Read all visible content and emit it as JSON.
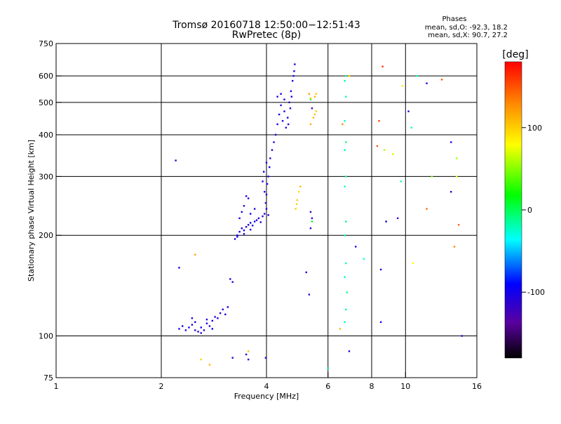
{
  "chart_data": {
    "type": "scatter",
    "title": "Tromsø 20160718 12:50:00−12:51:43",
    "subtitle": "RwPretec (8p)",
    "phases_panel": {
      "heading": "Phases",
      "line_o": "mean, sd,O: -92.3, 18.2",
      "line_x": "mean, sd,X:  90.7, 27.2"
    },
    "xlabel": "Frequency [MHz]",
    "ylabel": "Stationary phase Virtual Height [km]",
    "x_scale": "log2",
    "y_scale": "log",
    "xlim": [
      1,
      16
    ],
    "ylim": [
      75,
      750
    ],
    "x_ticks": [
      {
        "v": 1,
        "label": "1"
      },
      {
        "v": 2,
        "label": "2"
      },
      {
        "v": 4,
        "label": "4"
      },
      {
        "v": 6,
        "label": "6"
      },
      {
        "v": 8,
        "label": "8"
      },
      {
        "v": 10,
        "label": "10"
      },
      {
        "v": 16,
        "label": "16"
      }
    ],
    "y_ticks": [
      {
        "v": 75,
        "label": "75"
      },
      {
        "v": 100,
        "label": "100"
      },
      {
        "v": 200,
        "label": "200"
      },
      {
        "v": 300,
        "label": "300"
      },
      {
        "v": 400,
        "label": "400"
      },
      {
        "v": 500,
        "label": "500"
      },
      {
        "v": 600,
        "label": "600"
      },
      {
        "v": 750,
        "label": "750"
      }
    ],
    "grid": true,
    "colorbar": {
      "label": "[deg]",
      "min": -180,
      "max": 180,
      "ticks": [
        {
          "v": 100,
          "label": "100"
        },
        {
          "v": 0,
          "label": "0"
        },
        {
          "v": -100,
          "label": "-100"
        }
      ]
    },
    "points": [
      [
        2.25,
        105,
        -105
      ],
      [
        2.3,
        107,
        -100
      ],
      [
        2.35,
        104,
        -110
      ],
      [
        2.4,
        106,
        -95
      ],
      [
        2.45,
        108,
        -105
      ],
      [
        2.5,
        104,
        -110
      ],
      [
        2.5,
        110,
        -100
      ],
      [
        2.55,
        103,
        -105
      ],
      [
        2.6,
        106,
        -95
      ],
      [
        2.65,
        104,
        -110
      ],
      [
        2.7,
        109,
        -100
      ],
      [
        2.7,
        112,
        -105
      ],
      [
        2.75,
        107,
        -110
      ],
      [
        2.8,
        111,
        -95
      ],
      [
        2.85,
        114,
        -105
      ],
      [
        2.9,
        113,
        -100
      ],
      [
        2.95,
        117,
        -110
      ],
      [
        3.0,
        120,
        -100
      ],
      [
        3.05,
        116,
        -105
      ],
      [
        3.1,
        122,
        -95
      ],
      [
        3.15,
        148,
        -105
      ],
      [
        3.2,
        145,
        -110
      ],
      [
        2.6,
        102,
        -115
      ],
      [
        2.45,
        113,
        -100
      ],
      [
        2.8,
        105,
        -90
      ],
      [
        3.25,
        195,
        -110
      ],
      [
        3.3,
        200,
        -105
      ],
      [
        3.35,
        205,
        -100
      ],
      [
        3.4,
        210,
        -110
      ],
      [
        3.45,
        207,
        -95
      ],
      [
        3.5,
        212,
        -105
      ],
      [
        3.55,
        215,
        -110
      ],
      [
        3.6,
        218,
        -100
      ],
      [
        3.65,
        214,
        -105
      ],
      [
        3.7,
        220,
        -95
      ],
      [
        3.75,
        222,
        -110
      ],
      [
        3.8,
        225,
        -100
      ],
      [
        3.85,
        219,
        -105
      ],
      [
        3.9,
        228,
        -110
      ],
      [
        3.95,
        232,
        -100
      ],
      [
        3.35,
        225,
        -95
      ],
      [
        3.4,
        235,
        -110
      ],
      [
        3.45,
        245,
        -105
      ],
      [
        3.5,
        262,
        -100
      ],
      [
        3.55,
        258,
        -110
      ],
      [
        3.6,
        232,
        -95
      ],
      [
        3.7,
        240,
        -105
      ],
      [
        3.3,
        198,
        -100
      ],
      [
        3.45,
        202,
        -110
      ],
      [
        3.6,
        208,
        -100
      ],
      [
        3.98,
        250,
        -105
      ],
      [
        4.0,
        265,
        -110
      ],
      [
        4.02,
        285,
        -100
      ],
      [
        4.05,
        300,
        -105
      ],
      [
        4.08,
        320,
        -95
      ],
      [
        4.1,
        340,
        -110
      ],
      [
        4.15,
        360,
        -100
      ],
      [
        4.2,
        380,
        -105
      ],
      [
        4.25,
        400,
        -110
      ],
      [
        4.3,
        430,
        -100
      ],
      [
        4.35,
        460,
        -95
      ],
      [
        4.4,
        490,
        -105
      ],
      [
        4.45,
        440,
        -110
      ],
      [
        4.5,
        470,
        -100
      ],
      [
        4.55,
        420,
        -105
      ],
      [
        4.6,
        450,
        -95
      ],
      [
        4.65,
        500,
        -110
      ],
      [
        4.7,
        540,
        -100
      ],
      [
        4.75,
        580,
        -105
      ],
      [
        4.8,
        620,
        -110
      ],
      [
        4.82,
        650,
        -100
      ],
      [
        4.78,
        600,
        -105
      ],
      [
        4.72,
        520,
        -95
      ],
      [
        4.68,
        480,
        -110
      ],
      [
        4.62,
        430,
        -100
      ],
      [
        4.4,
        530,
        -105
      ],
      [
        4.3,
        520,
        -110
      ],
      [
        4.5,
        510,
        -100
      ],
      [
        4.05,
        230,
        -105
      ],
      [
        4.0,
        240,
        -110
      ],
      [
        3.95,
        270,
        -100
      ],
      [
        3.9,
        290,
        -105
      ],
      [
        3.93,
        310,
        -95
      ],
      [
        4.0,
        330,
        -110
      ],
      [
        2.2,
        335,
        -120
      ],
      [
        2.25,
        160,
        -105
      ],
      [
        3.2,
        86,
        -110
      ],
      [
        3.5,
        88,
        -105
      ],
      [
        3.55,
        85,
        -115
      ],
      [
        3.98,
        86,
        -100
      ],
      [
        5.3,
        133,
        -110
      ],
      [
        5.2,
        155,
        -105
      ],
      [
        4.85,
        240,
        100
      ],
      [
        4.9,
        255,
        105
      ],
      [
        4.95,
        270,
        95
      ],
      [
        5.0,
        280,
        110
      ],
      [
        4.88,
        248,
        100
      ],
      [
        5.45,
        450,
        110
      ],
      [
        5.5,
        460,
        105
      ],
      [
        5.55,
        470,
        100
      ],
      [
        5.5,
        520,
        110
      ],
      [
        5.55,
        530,
        105
      ],
      [
        5.35,
        430,
        115
      ],
      [
        5.3,
        530,
        120
      ],
      [
        6.5,
        105,
        110
      ],
      [
        6.6,
        430,
        130
      ],
      [
        6.9,
        600,
        100
      ],
      [
        2.6,
        85,
        100
      ],
      [
        2.75,
        82,
        110
      ],
      [
        3.55,
        90,
        105
      ],
      [
        2.5,
        175,
        115
      ],
      [
        5.35,
        510,
        0
      ],
      [
        5.4,
        220,
        10
      ],
      [
        6.7,
        110,
        -20
      ],
      [
        6.75,
        120,
        -15
      ],
      [
        6.8,
        135,
        -10
      ],
      [
        6.7,
        150,
        -25
      ],
      [
        6.75,
        165,
        -20
      ],
      [
        6.7,
        200,
        -15
      ],
      [
        6.75,
        220,
        -10
      ],
      [
        6.7,
        280,
        -25
      ],
      [
        6.75,
        300,
        -20
      ],
      [
        6.7,
        360,
        -15
      ],
      [
        6.75,
        380,
        -10
      ],
      [
        6.7,
        440,
        -25
      ],
      [
        6.75,
        520,
        -20
      ],
      [
        6.7,
        580,
        -15
      ],
      [
        6.75,
        600,
        -10
      ],
      [
        7.6,
        170,
        -30
      ],
      [
        9.7,
        290,
        -15
      ],
      [
        8.8,
        220,
        -20
      ],
      [
        10.4,
        420,
        -25
      ],
      [
        10.8,
        600,
        -20
      ],
      [
        6.0,
        80,
        -10
      ],
      [
        6.9,
        90,
        -105
      ],
      [
        7.2,
        185,
        -110
      ],
      [
        8.5,
        110,
        -100
      ],
      [
        8.5,
        158,
        -105
      ],
      [
        8.8,
        220,
        -115
      ],
      [
        9.5,
        225,
        -120
      ],
      [
        10.2,
        470,
        -105
      ],
      [
        11.5,
        570,
        -110
      ],
      [
        13.5,
        380,
        -100
      ],
      [
        13.5,
        270,
        -105
      ],
      [
        14.5,
        100,
        -110
      ],
      [
        5.35,
        210,
        -105
      ],
      [
        5.4,
        225,
        -110
      ],
      [
        5.35,
        235,
        -115
      ],
      [
        5.4,
        480,
        -130
      ],
      [
        8.6,
        640,
        160
      ],
      [
        8.3,
        370,
        150
      ],
      [
        8.4,
        440,
        155
      ],
      [
        11.5,
        240,
        140
      ],
      [
        14.2,
        215,
        145
      ],
      [
        12.7,
        585,
        150
      ],
      [
        13.8,
        185,
        130
      ],
      [
        8.7,
        360,
        60
      ],
      [
        9.2,
        350,
        70
      ],
      [
        10.5,
        165,
        80
      ],
      [
        11.9,
        300,
        50
      ],
      [
        14.0,
        340,
        60
      ],
      [
        14.0,
        300,
        75
      ],
      [
        9.8,
        560,
        90
      ],
      [
        5.35,
        515,
        95
      ]
    ]
  }
}
